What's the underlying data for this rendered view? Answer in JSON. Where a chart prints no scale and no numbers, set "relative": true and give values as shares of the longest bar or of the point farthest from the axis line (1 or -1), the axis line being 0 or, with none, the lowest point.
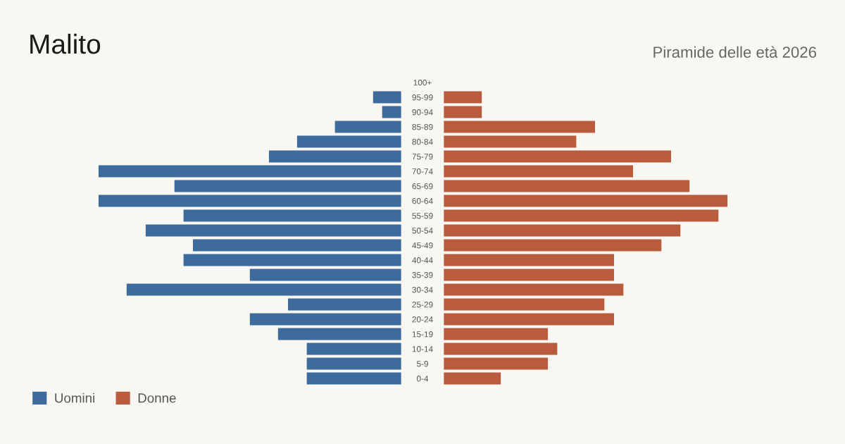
{
  "chart_data": [
    {
      "type": "bar",
      "orientation": "horizontal",
      "relative": true,
      "tick_labels": false,
      "grid": false,
      "legend": "bottom left",
      "title": "Malito",
      "categories": [
        "100+",
        "95-99",
        "90-94",
        "85-89",
        "80-84",
        "75-79",
        "70-74",
        "65-69",
        "60-64",
        "55-59",
        "50-54",
        "45-49",
        "40-44",
        "35-39",
        "30-34",
        "25-29",
        "20-24",
        "15-19",
        "10-14",
        "5-9",
        "0-4"
      ],
      "series": [
        {
          "name": "Uomini",
          "color": "#3d6b9b",
          "values": [
            0,
            -0.093,
            -0.063,
            -0.219,
            -0.344,
            -0.437,
            -1,
            -0.749,
            -1,
            -0.719,
            -0.844,
            -0.688,
            -0.719,
            -0.5,
            -0.907,
            -0.374,
            -0.5,
            -0.407,
            -0.312,
            -0.312,
            -0.312
          ]
        }
      ]
    },
    {
      "type": "bar",
      "orientation": "horizontal",
      "relative": true,
      "tick_labels": "y",
      "grid": false,
      "legend": "bottom left",
      "subtitle": "Piramide delle età 2026",
      "categories": [
        "100+",
        "95-99",
        "90-94",
        "85-89",
        "80-84",
        "75-79",
        "70-74",
        "65-69",
        "60-64",
        "55-59",
        "50-54",
        "45-49",
        "40-44",
        "35-39",
        "30-34",
        "25-29",
        "20-24",
        "15-19",
        "10-14",
        "5-9",
        "0-4"
      ],
      "series": [
        {
          "name": "Donne",
          "color": "#b95c3d",
          "values": [
            0,
            0.134,
            0.134,
            0.533,
            0.467,
            0.801,
            0.667,
            0.866,
            1,
            0.968,
            0.834,
            0.767,
            0.6,
            0.6,
            0.633,
            0.566,
            0.6,
            0.367,
            0.4,
            0.367,
            0.201
          ]
        }
      ]
    }
  ]
}
